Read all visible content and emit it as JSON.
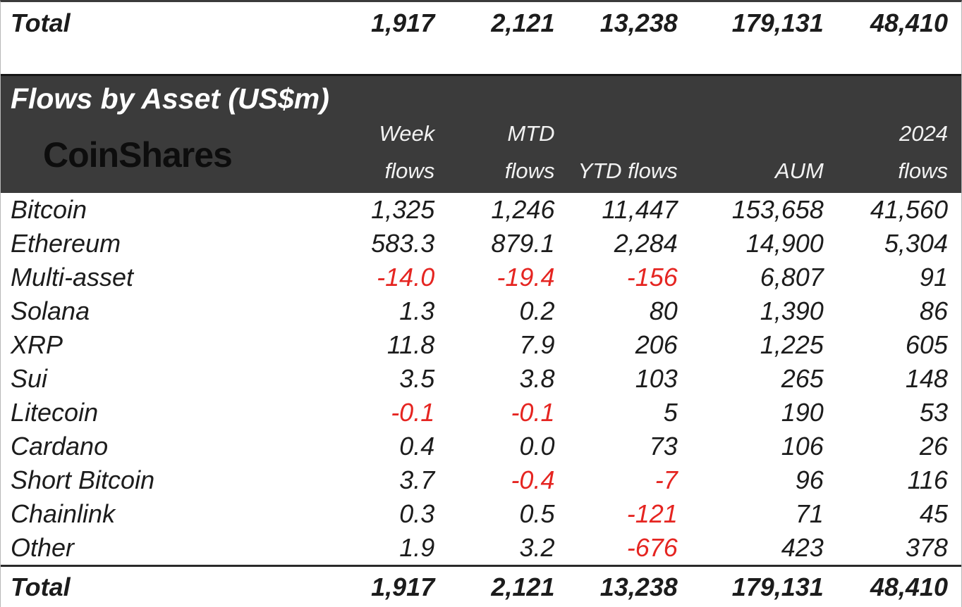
{
  "header": {
    "title": "Flows by Asset (US$m)",
    "brand": "CoinShares",
    "columns": [
      {
        "line1": "Week",
        "line2": "flows"
      },
      {
        "line1": "MTD",
        "line2": "flows"
      },
      {
        "line1": "",
        "line2": "YTD flows"
      },
      {
        "line1": "",
        "line2": "AUM"
      },
      {
        "line1": "2024",
        "line2": "flows"
      }
    ]
  },
  "rows": [
    {
      "asset": "Bitcoin",
      "values": [
        "1,325",
        "1,246",
        "11,447",
        "153,658",
        "41,560"
      ]
    },
    {
      "asset": "Ethereum",
      "values": [
        "583.3",
        "879.1",
        "2,284",
        "14,900",
        "5,304"
      ]
    },
    {
      "asset": "Multi-asset",
      "values": [
        "-14.0",
        "-19.4",
        "-156",
        "6,807",
        "91"
      ]
    },
    {
      "asset": "Solana",
      "values": [
        "1.3",
        "0.2",
        "80",
        "1,390",
        "86"
      ]
    },
    {
      "asset": "XRP",
      "values": [
        "11.8",
        "7.9",
        "206",
        "1,225",
        "605"
      ]
    },
    {
      "asset": "Sui",
      "values": [
        "3.5",
        "3.8",
        "103",
        "265",
        "148"
      ]
    },
    {
      "asset": "Litecoin",
      "values": [
        "-0.1",
        "-0.1",
        "5",
        "190",
        "53"
      ]
    },
    {
      "asset": "Cardano",
      "values": [
        "0.4",
        "0.0",
        "73",
        "106",
        "26"
      ]
    },
    {
      "asset": "Short Bitcoin",
      "values": [
        "3.7",
        "-0.4",
        "-7",
        "96",
        "116"
      ]
    },
    {
      "asset": "Chainlink",
      "values": [
        "0.3",
        "0.5",
        "-121",
        "71",
        "45"
      ]
    },
    {
      "asset": "Other",
      "values": [
        "1.9",
        "3.2",
        "-676",
        "423",
        "378"
      ]
    }
  ],
  "total": {
    "label": "Total",
    "values": [
      "1,917",
      "2,121",
      "13,238",
      "179,131",
      "48,410"
    ]
  },
  "colors": {
    "negative_value": "#e52521",
    "band_background": "#3b3b3b",
    "band_text": "#ffffff",
    "body_text": "#1c1c1c"
  },
  "chart_data": {
    "type": "table",
    "title": "Flows by Asset (US$m)",
    "columns": [
      "Asset",
      "Week flows",
      "MTD flows",
      "YTD flows",
      "AUM",
      "2024 flows"
    ],
    "rows": [
      [
        "Bitcoin",
        1325,
        1246,
        11447,
        153658,
        41560
      ],
      [
        "Ethereum",
        583.3,
        879.1,
        2284,
        14900,
        5304
      ],
      [
        "Multi-asset",
        -14.0,
        -19.4,
        -156,
        6807,
        91
      ],
      [
        "Solana",
        1.3,
        0.2,
        80,
        1390,
        86
      ],
      [
        "XRP",
        11.8,
        7.9,
        206,
        1225,
        605
      ],
      [
        "Sui",
        3.5,
        3.8,
        103,
        265,
        148
      ],
      [
        "Litecoin",
        -0.1,
        -0.1,
        5,
        190,
        53
      ],
      [
        "Cardano",
        0.4,
        0.0,
        73,
        106,
        26
      ],
      [
        "Short Bitcoin",
        3.7,
        -0.4,
        -7,
        96,
        116
      ],
      [
        "Chainlink",
        0.3,
        0.5,
        -121,
        71,
        45
      ],
      [
        "Other",
        1.9,
        3.2,
        -676,
        423,
        378
      ],
      [
        "Total",
        1917,
        2121,
        13238,
        179131,
        48410
      ]
    ]
  }
}
